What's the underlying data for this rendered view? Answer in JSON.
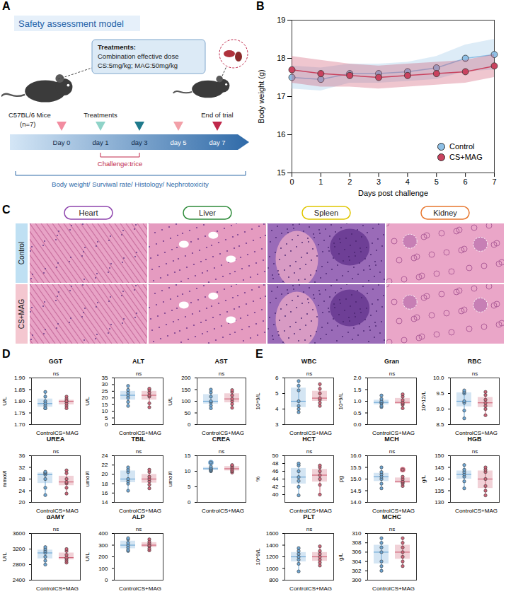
{
  "panel_labels": [
    "A",
    "B",
    "C",
    "D",
    "E"
  ],
  "panel_a": {
    "title": "Safety assessment model",
    "subject": "C57BL/6 Mice",
    "n": "(n=7)",
    "treatment_box": [
      "Treatments:",
      "Combination effective dose",
      "CS:5mg/kg;  MAG:50mg/kg"
    ],
    "timeline": [
      "Day 0",
      "day 1",
      "day 3",
      "day 5",
      "day 7"
    ],
    "treatments_label": "Treatments",
    "end_label": "End of trial",
    "challenge": "Challenge:trice",
    "endpoints": "Body weight/ Surviwal rate/ Histology/ Nephrotoxicity"
  },
  "panel_c": {
    "type": "histology",
    "columns": [
      {
        "label": "Heart",
        "color": "#8e44ad"
      },
      {
        "label": "Liver",
        "color": "#2e8b3a"
      },
      {
        "label": "Spleen",
        "color": "#e0c600"
      },
      {
        "label": "Kidney",
        "color": "#e8772e"
      }
    ],
    "rows": [
      "Control",
      "CS+MAG"
    ]
  },
  "chart_data": [
    {
      "type": "line",
      "x_label": "Days post challenge",
      "y_label": "Body weight (g)",
      "x": [
        0,
        1,
        2,
        3,
        4,
        5,
        6,
        7
      ],
      "xlim": [
        0,
        7
      ],
      "xticks": [
        0,
        1,
        2,
        3,
        4,
        5,
        6,
        7
      ],
      "ylim": [
        15,
        19
      ],
      "yticks": [
        15,
        16,
        17,
        18,
        19
      ],
      "grid": false,
      "legend": "bottom-right",
      "series": [
        {
          "name": "Control",
          "color": "#8ec0e6",
          "marker": "circle",
          "values": [
            17.5,
            17.45,
            17.6,
            17.6,
            17.65,
            17.75,
            18.0,
            18.1
          ],
          "error": [
            0.3,
            0.3,
            0.25,
            0.25,
            0.25,
            0.3,
            0.35,
            0.4
          ]
        },
        {
          "name": "CS+MAG",
          "color": "#c9435f",
          "marker": "circle",
          "values": [
            17.7,
            17.6,
            17.55,
            17.5,
            17.55,
            17.6,
            17.65,
            17.8
          ],
          "error": [
            0.35,
            0.35,
            0.3,
            0.3,
            0.3,
            0.3,
            0.3,
            0.3
          ]
        }
      ]
    },
    {
      "type": "box",
      "charts": [
        {
          "title": "GGT",
          "y_label": "U/L",
          "annotation": "ns",
          "categories": [
            "Control",
            "CS+MAG"
          ],
          "ylim": [
            1.7,
            1.9
          ],
          "yticks": [
            {
              "value": 1.7,
              "label": "1.70"
            },
            1.75,
            {
              "value": 1.8,
              "label": "1.80"
            },
            1.85,
            {
              "value": 1.9,
              "label": "1.90"
            }
          ],
          "series": [
            {
              "name": "Control",
              "color": "#6fa8d6",
              "values": [
                1.77,
                1.78,
                1.8,
                1.79,
                1.82,
                1.84,
                1.77
              ]
            },
            {
              "name": "CS+MAG",
              "color": "#d0667a",
              "values": [
                1.78,
                1.79,
                1.8,
                1.81,
                1.8,
                1.82,
                1.77
              ]
            }
          ]
        },
        {
          "title": "ALT",
          "y_label": "U/L",
          "annotation": "ns",
          "categories": [
            "Control",
            "CS+MAG"
          ],
          "ylim": [
            0,
            35
          ],
          "yticks": [
            0,
            5,
            10,
            15,
            20,
            25,
            30,
            35
          ],
          "series": [
            {
              "name": "Control",
              "color": "#6fa8d6",
              "values": [
                14,
                17,
                20,
                22,
                24,
                26,
                29
              ]
            },
            {
              "name": "CS+MAG",
              "color": "#d0667a",
              "values": [
                13,
                16,
                21,
                22,
                24,
                26,
                27
              ]
            }
          ]
        },
        {
          "title": "AST",
          "y_label": "U/L",
          "annotation": "ns",
          "categories": [
            "Control",
            "CS+MAG"
          ],
          "ylim": [
            0,
            200
          ],
          "yticks": [
            0,
            50,
            100,
            150,
            200
          ],
          "series": [
            {
              "name": "Control",
              "color": "#6fa8d6",
              "values": [
                70,
                82,
                95,
                100,
                120,
                138,
                150
              ]
            },
            {
              "name": "CS+MAG",
              "color": "#d0667a",
              "values": [
                72,
                88,
                100,
                110,
                125,
                140,
                148
              ]
            }
          ]
        },
        {
          "title": "UREA",
          "y_label": "mmol/l",
          "annotation": "ns",
          "categories": [
            "Control",
            "CS+MAG"
          ],
          "ylim": [
            20,
            36
          ],
          "yticks": [
            20,
            24,
            28,
            32,
            36
          ],
          "series": [
            {
              "name": "Control",
              "color": "#6fa8d6",
              "values": [
                22.5,
                25,
                28,
                29.5,
                30,
                30.2,
                30.5
              ]
            },
            {
              "name": "CS+MAG",
              "color": "#d0667a",
              "values": [
                23,
                25,
                26.5,
                27,
                28,
                30,
                31
              ]
            }
          ]
        },
        {
          "title": "TBIL",
          "y_label": "umol/l",
          "annotation": "ns",
          "categories": [
            "Control",
            "CS+MAG"
          ],
          "ylim": [
            14,
            24
          ],
          "yticks": [
            14,
            16,
            18,
            20,
            22,
            24
          ],
          "series": [
            {
              "name": "Control",
              "color": "#6fa8d6",
              "values": [
                16.5,
                18,
                18.5,
                19,
                20.5,
                21,
                21.5
              ]
            },
            {
              "name": "CS+MAG",
              "color": "#d0667a",
              "values": [
                17,
                17.8,
                18.5,
                19,
                19.5,
                20.5,
                21
              ]
            }
          ]
        },
        {
          "title": "CREA",
          "y_label": "umol/l",
          "annotation": "ns",
          "categories": [
            "Control",
            "CS+MAG"
          ],
          "ylim": [
            0,
            15
          ],
          "yticks": [
            0,
            5,
            10,
            15
          ],
          "series": [
            {
              "name": "Control",
              "color": "#6fa8d6",
              "values": [
                10,
                10.2,
                10.5,
                10.8,
                11,
                11.5,
                12.8
              ]
            },
            {
              "name": "CS+MAG",
              "color": "#d0667a",
              "values": [
                9.6,
                10,
                10.3,
                10.8,
                11.3,
                11.8,
                12
              ]
            }
          ]
        },
        {
          "title": "αAMY",
          "y_label": "U/L",
          "annotation": "ns",
          "categories": [
            "Control",
            "CS+MAG"
          ],
          "ylim": [
            2400,
            3600
          ],
          "yticks": [
            2400,
            2800,
            3200,
            3600
          ],
          "series": [
            {
              "name": "Control",
              "color": "#6fa8d6",
              "values": [
                2800,
                2900,
                3000,
                3100,
                3150,
                3200,
                3250
              ]
            },
            {
              "name": "CS+MAG",
              "color": "#d0667a",
              "values": [
                2850,
                2900,
                2950,
                2980,
                3050,
                3150,
                3200
              ]
            }
          ]
        },
        {
          "title": "ALP",
          "y_label": "U/L",
          "annotation": "ns",
          "categories": [
            "Control",
            "CS+MAG"
          ],
          "ylim": [
            0,
            400
          ],
          "yticks": [
            0,
            100,
            200,
            300,
            400
          ],
          "series": [
            {
              "name": "Control",
              "color": "#6fa8d6",
              "values": [
                250,
                260,
                280,
                300,
                320,
                350,
                360
              ]
            },
            {
              "name": "CS+MAG",
              "color": "#d0667a",
              "values": [
                255,
                270,
                290,
                300,
                315,
                330,
                350
              ]
            }
          ]
        }
      ]
    },
    {
      "type": "box",
      "charts": [
        {
          "title": "WBC",
          "y_label": "10^9/L",
          "annotation": "ns",
          "categories": [
            "Control",
            "CS+MAG"
          ],
          "ylim": [
            3,
            6
          ],
          "yticks": [
            3,
            4,
            5,
            6
          ],
          "series": [
            {
              "name": "Control",
              "color": "#6fa8d6",
              "values": [
                3.8,
                4.0,
                4.2,
                4.5,
                5.2,
                5.5,
                5.8
              ]
            },
            {
              "name": "CS+MAG",
              "color": "#d0667a",
              "values": [
                4.2,
                4.4,
                4.6,
                4.7,
                5.0,
                5.3,
                5.6
              ]
            }
          ]
        },
        {
          "title": "Gran",
          "y_label": "10^9/L",
          "annotation": "ns",
          "categories": [
            "Control",
            "CS+MAG"
          ],
          "ylim": [
            0,
            2
          ],
          "yticks": [
            {
              "value": 0,
              "label": "0.0"
            },
            0.5,
            {
              "value": 1,
              "label": "1.0"
            },
            1.5,
            {
              "value": 2,
              "label": "2.0"
            }
          ],
          "series": [
            {
              "name": "Control",
              "color": "#6fa8d6",
              "values": [
                0.75,
                0.8,
                0.9,
                0.95,
                1.0,
                1.1,
                1.25
              ]
            },
            {
              "name": "CS+MAG",
              "color": "#d0667a",
              "values": [
                0.7,
                0.85,
                0.9,
                0.95,
                1.05,
                1.2,
                1.3
              ]
            }
          ]
        },
        {
          "title": "RBC",
          "y_label": "10^12/L",
          "annotation": "ns",
          "categories": [
            "Control",
            "CS+MAG"
          ],
          "ylim": [
            8.5,
            10
          ],
          "yticks": [
            8.5,
            {
              "value": 9,
              "label": "9.0"
            },
            9.5,
            {
              "value": 10,
              "label": "10.0"
            }
          ],
          "series": [
            {
              "name": "Control",
              "color": "#6fa8d6",
              "values": [
                8.7,
                8.95,
                9.2,
                9.25,
                9.5,
                9.55,
                9.6
              ]
            },
            {
              "name": "CS+MAG",
              "color": "#d0667a",
              "values": [
                8.8,
                9.0,
                9.1,
                9.2,
                9.3,
                9.45,
                9.55
              ]
            }
          ]
        },
        {
          "title": "HCT",
          "y_label": "%",
          "annotation": "ns",
          "categories": [
            "Control",
            "CS+MAG"
          ],
          "ylim": [
            38,
            50
          ],
          "yticks": [
            40,
            42,
            44,
            46,
            48,
            50
          ],
          "series": [
            {
              "name": "Control",
              "color": "#6fa8d6",
              "values": [
                39.8,
                42,
                43.5,
                44.5,
                46,
                47.5,
                48
              ]
            },
            {
              "name": "CS+MAG",
              "color": "#d0667a",
              "values": [
                40,
                42.5,
                44,
                45,
                46,
                47,
                47.5
              ]
            }
          ]
        },
        {
          "title": "MCH",
          "y_label": "pg",
          "annotation": "ns",
          "categories": [
            "Control",
            "CS+MAG"
          ],
          "ylim": [
            14,
            16
          ],
          "yticks": [
            {
              "value": 14,
              "label": "14.0"
            },
            14.5,
            {
              "value": 15,
              "label": "15.0"
            },
            15.5,
            {
              "value": 16,
              "label": "16.0"
            }
          ],
          "series": [
            {
              "name": "Control",
              "color": "#6fa8d6",
              "values": [
                14.6,
                14.8,
                15.0,
                15.1,
                15.2,
                15.3,
                15.5
              ]
            },
            {
              "name": "CS+MAG",
              "color": "#d0667a",
              "values": [
                14.7,
                14.8,
                14.85,
                14.9,
                15.0,
                15.1,
                15.4
              ]
            }
          ]
        },
        {
          "title": "HGB",
          "y_label": "g/L",
          "annotation": "ns",
          "categories": [
            "Control",
            "CS+MAG"
          ],
          "ylim": [
            130,
            150
          ],
          "yticks": [
            130,
            135,
            140,
            145,
            150
          ],
          "series": [
            {
              "name": "Control",
              "color": "#6fa8d6",
              "values": [
                136,
                139,
                141,
                142,
                143,
                144,
                146
              ]
            },
            {
              "name": "CS+MAG",
              "color": "#d0667a",
              "values": [
                133,
                135,
                137,
                140,
                143,
                144,
                145
              ]
            }
          ]
        },
        {
          "title": "PLT",
          "y_label": "10^9/L",
          "annotation": "ns",
          "categories": [
            "Control",
            "CS+MAG"
          ],
          "ylim": [
            800,
            1600
          ],
          "yticks": [
            800,
            1000,
            1200,
            1400,
            1600
          ],
          "series": [
            {
              "name": "Control",
              "color": "#6fa8d6",
              "values": [
                950,
                1080,
                1150,
                1200,
                1250,
                1300,
                1350
              ]
            },
            {
              "name": "CS+MAG",
              "color": "#d0667a",
              "values": [
                1050,
                1100,
                1150,
                1200,
                1250,
                1300,
                1380
              ]
            }
          ]
        },
        {
          "title": "MCHC",
          "y_label": "g/L",
          "annotation": "ns",
          "categories": [
            "Control",
            "CS+MAG"
          ],
          "ylim": [
            300,
            310
          ],
          "yticks": [
            300,
            302,
            304,
            306,
            308,
            310
          ],
          "series": [
            {
              "name": "Control",
              "color": "#6fa8d6",
              "values": [
                302,
                303,
                304,
                306,
                307,
                308,
                309
              ]
            },
            {
              "name": "CS+MAG",
              "color": "#d0667a",
              "values": [
                303,
                304,
                305,
                306,
                307,
                308,
                309
              ]
            }
          ]
        }
      ]
    }
  ]
}
